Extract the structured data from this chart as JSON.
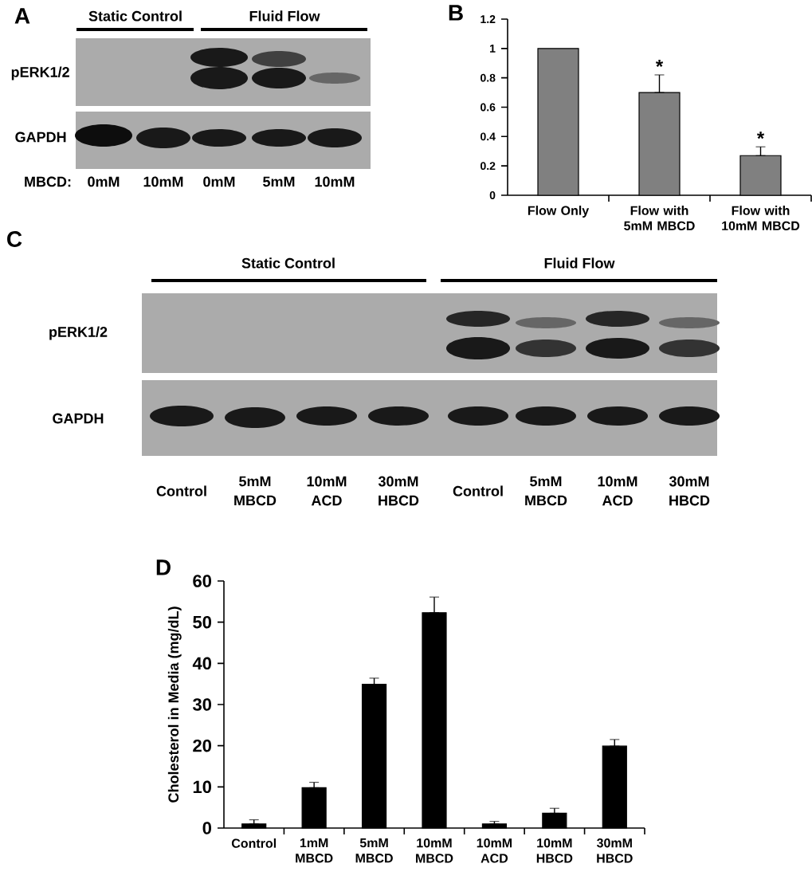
{
  "chart_data": [
    {
      "type": "other",
      "title": "A",
      "categories": [
        "0mM",
        "10mM",
        "0mM",
        "5mM",
        "10mM"
      ],
      "annotations": [
        "Static Control",
        "Fluid Flow",
        "pERK1/2",
        "GAPDH",
        "MBCD:"
      ]
    },
    {
      "type": "bar",
      "title": "B",
      "categories": [
        "Flow Only",
        "Flow with 5mM MBCD",
        "Flow with 10mM MBCD"
      ],
      "values": [
        1,
        0.7,
        0.27
      ],
      "errors": [
        null,
        [
          0.7,
          0.82
        ],
        [
          0.27,
          0.33
        ]
      ],
      "color": "#808080",
      "ylim": [
        0,
        1.2
      ],
      "yticks": [
        0,
        0.2,
        0.4,
        0.6,
        0.8,
        1,
        1.2
      ],
      "annotations": [
        {
          "text": "*",
          "x": "Flow with 5mM MBCD",
          "y": 0.82
        },
        {
          "text": "*",
          "x": "Flow with 10mM MBCD",
          "y": 0.33
        }
      ]
    },
    {
      "type": "other",
      "title": "C",
      "categories": [
        "Control",
        "5mM MBCD",
        "10mM ACD",
        "30mM HBCD",
        "Control",
        "5mM MBCD",
        "10mM ACD",
        "30mM HBCD"
      ],
      "annotations": [
        "Static Control",
        "Fluid Flow",
        "pERK1/2",
        "GAPDH"
      ]
    },
    {
      "type": "bar",
      "title": "D",
      "ylabel": "Cholesterol in Media (mg/dL)",
      "categories": [
        "Control",
        "1mM MBCD",
        "5mM MBCD",
        "10mM MBCD",
        "10mM ACD",
        "10mM HBCD",
        "30mM HBCD"
      ],
      "values": [
        1,
        9.8,
        34.9,
        52.3,
        1,
        3.6,
        19.9
      ],
      "errors": [
        [
          1,
          2
        ],
        [
          9.8,
          11.1
        ],
        [
          34.9,
          36.4
        ],
        [
          52.3,
          56.1
        ],
        [
          1,
          1.6
        ],
        [
          3.6,
          4.8
        ],
        [
          19.9,
          21.5
        ]
      ],
      "color": "#000000",
      "ylim": [
        0,
        60
      ],
      "yticks": [
        0,
        10,
        20,
        30,
        40,
        50,
        60
      ]
    }
  ]
}
